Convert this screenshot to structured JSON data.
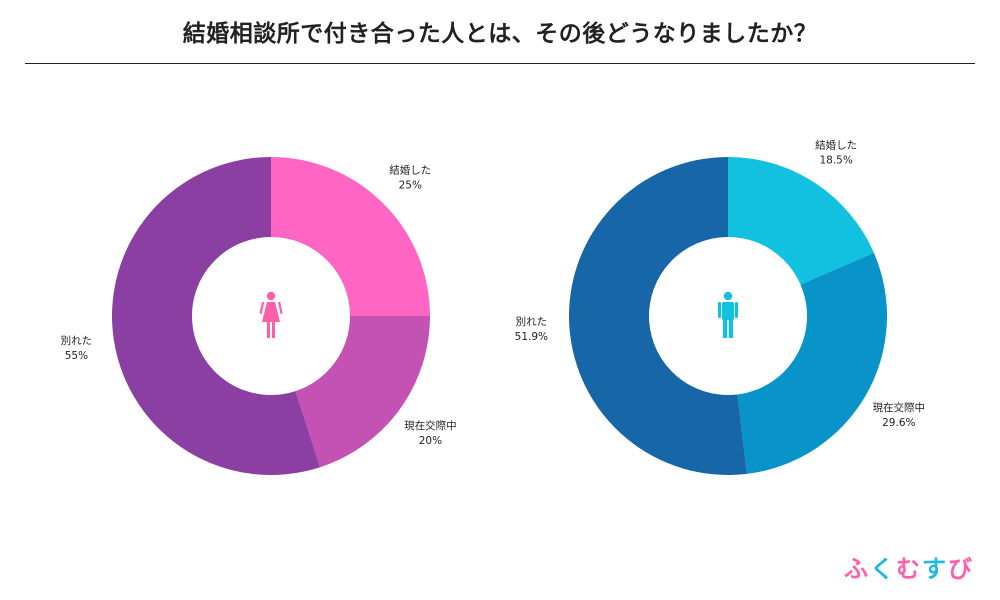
{
  "title": "結婚相談所で付き合った人とは、その後どうなりましたか？",
  "logo": {
    "chars": [
      "ふ",
      "く",
      "む",
      "す",
      "び"
    ],
    "colors": [
      "#ff5fa8",
      "#22b8e0",
      "#ff5fa8",
      "#22b8e0",
      "#ff5fa8"
    ]
  },
  "chart_data": [
    {
      "type": "pie",
      "donut": true,
      "center_icon": "female-icon",
      "icon_color": "#ff5fa8",
      "categories": [
        "結婚した",
        "現在交際中",
        "別れた"
      ],
      "values": [
        25,
        20,
        55
      ],
      "value_labels": [
        "25%",
        "20%",
        "55%"
      ],
      "colors": [
        "#ff66c4",
        "#c452b5",
        "#8b3fa2"
      ]
    },
    {
      "type": "pie",
      "donut": true,
      "center_icon": "male-icon",
      "icon_color": "#12c0e0",
      "categories": [
        "結婚した",
        "現在交際中",
        "別れた"
      ],
      "values": [
        18.5,
        29.6,
        51.9
      ],
      "value_labels": [
        "18.5%",
        "29.6%",
        "51.9%"
      ],
      "colors": [
        "#12c0e0",
        "#0893c9",
        "#1767a8"
      ]
    }
  ]
}
